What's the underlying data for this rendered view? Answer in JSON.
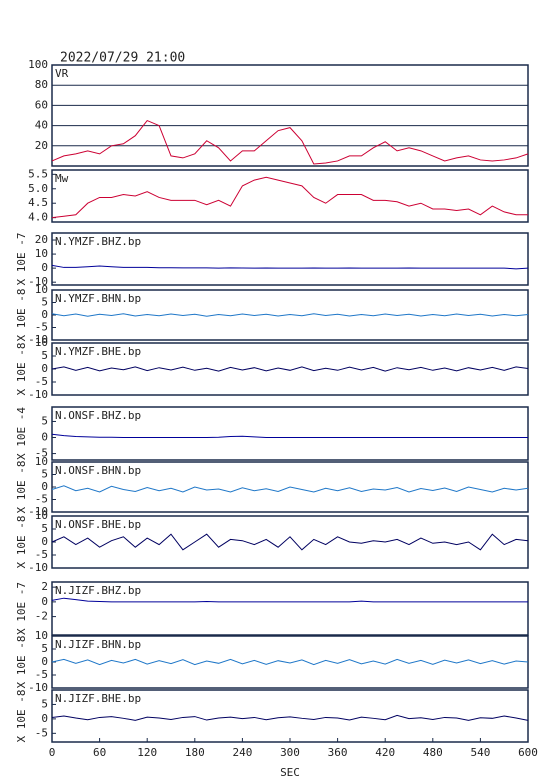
{
  "chart_data": [
    {
      "type": "line",
      "title": "2022/07/29 21:00",
      "label": "VR",
      "color": "#cc0033",
      "grid": true,
      "xlim": [
        0,
        600
      ],
      "ylim": [
        0,
        100
      ],
      "yticks": [
        20,
        40,
        60,
        80,
        100
      ],
      "x": [
        0,
        15,
        30,
        45,
        60,
        75,
        90,
        105,
        120,
        135,
        150,
        165,
        180,
        195,
        210,
        225,
        240,
        255,
        270,
        285,
        300,
        315,
        330,
        345,
        360,
        375,
        390,
        405,
        420,
        435,
        450,
        465,
        480,
        495,
        510,
        525,
        540,
        555,
        570,
        585,
        600
      ],
      "values": [
        5,
        10,
        12,
        15,
        12,
        20,
        22,
        30,
        45,
        40,
        10,
        8,
        12,
        25,
        18,
        5,
        15,
        15,
        25,
        35,
        38,
        25,
        2,
        3,
        5,
        10,
        10,
        18,
        24,
        15,
        18,
        15,
        10,
        5,
        8,
        10,
        6,
        5,
        6,
        8,
        12
      ]
    },
    {
      "type": "line",
      "label": "Mw",
      "color": "#cc0033",
      "xlim": [
        0,
        600
      ],
      "ylim": [
        3.85,
        5.65
      ],
      "yticks": [
        {
          "value": 4,
          "label": "4.0"
        },
        {
          "value": 4.5,
          "label": "4.5"
        },
        {
          "value": 5,
          "label": "5.0"
        },
        {
          "value": 5.5,
          "label": "5.5"
        }
      ],
      "x": [
        0,
        15,
        30,
        45,
        60,
        75,
        90,
        105,
        120,
        135,
        150,
        165,
        180,
        195,
        210,
        225,
        240,
        255,
        270,
        285,
        300,
        315,
        330,
        345,
        360,
        375,
        390,
        405,
        420,
        435,
        450,
        465,
        480,
        495,
        510,
        525,
        540,
        555,
        570,
        585,
        600
      ],
      "values": [
        4.0,
        4.05,
        4.1,
        4.5,
        4.7,
        4.7,
        4.8,
        4.75,
        4.9,
        4.7,
        4.6,
        4.6,
        4.6,
        4.45,
        4.6,
        4.4,
        5.1,
        5.3,
        5.4,
        5.3,
        5.2,
        5.1,
        4.7,
        4.5,
        4.8,
        4.8,
        4.8,
        4.6,
        4.6,
        4.55,
        4.4,
        4.5,
        4.3,
        4.3,
        4.25,
        4.3,
        4.1,
        4.4,
        4.2,
        4.1,
        4.1
      ]
    },
    {
      "type": "line",
      "label": "N.YMZF.BHZ.bp",
      "ylabel": "X 10E -7",
      "color": "#000099",
      "xlim": [
        0,
        600
      ],
      "ylim": [
        -12,
        25
      ],
      "yticks": [
        -10,
        0,
        10,
        20
      ],
      "x": [
        0,
        15,
        30,
        45,
        60,
        75,
        90,
        105,
        120,
        135,
        150,
        165,
        180,
        195,
        210,
        225,
        240,
        255,
        270,
        285,
        300,
        315,
        330,
        345,
        360,
        375,
        390,
        405,
        420,
        435,
        450,
        465,
        480,
        495,
        510,
        525,
        540,
        555,
        570,
        585,
        600
      ],
      "values": [
        2,
        0.5,
        0.5,
        1,
        1.5,
        1,
        0.5,
        0.5,
        0.5,
        0.3,
        0.3,
        0.2,
        0.2,
        0.2,
        0,
        0.2,
        0.1,
        0,
        0.1,
        0,
        0,
        0,
        0.1,
        0,
        0,
        0.1,
        0,
        0,
        0,
        0,
        0.1,
        0,
        0,
        0,
        0,
        0,
        0,
        0,
        0,
        -0.5,
        0
      ]
    },
    {
      "type": "line",
      "label": "N.YMZF.BHN.bp",
      "ylabel": "X 10E -8",
      "color": "#1f77c8",
      "xlim": [
        0,
        600
      ],
      "ylim": [
        -10,
        10
      ],
      "yticks": [
        -10,
        -5,
        0,
        5,
        10
      ],
      "x": [
        0,
        15,
        30,
        45,
        60,
        75,
        90,
        105,
        120,
        135,
        150,
        165,
        180,
        195,
        210,
        225,
        240,
        255,
        270,
        285,
        300,
        315,
        330,
        345,
        360,
        375,
        390,
        405,
        420,
        435,
        450,
        465,
        480,
        495,
        510,
        525,
        540,
        555,
        570,
        585,
        600
      ],
      "values": [
        0.5,
        -0.3,
        0.4,
        -0.5,
        0.3,
        -0.2,
        0.5,
        -0.4,
        0.2,
        -0.3,
        0.4,
        -0.2,
        0.3,
        -0.5,
        0.2,
        -0.3,
        0.4,
        -0.2,
        0.3,
        -0.4,
        0.2,
        -0.3,
        0.5,
        -0.2,
        0.3,
        -0.4,
        0.2,
        -0.3,
        0.4,
        -0.2,
        0.3,
        -0.4,
        0.2,
        -0.3,
        0.4,
        -0.2,
        0.3,
        -0.4,
        0.2,
        -0.3,
        0.2
      ]
    },
    {
      "type": "line",
      "label": "N.YMZF.BHE.bp",
      "ylabel": "X 10E -8",
      "color": "#000060",
      "xlim": [
        0,
        600
      ],
      "ylim": [
        -10,
        10
      ],
      "yticks": [
        -10,
        -5,
        0,
        5,
        10
      ],
      "x": [
        0,
        15,
        30,
        45,
        60,
        75,
        90,
        105,
        120,
        135,
        150,
        165,
        180,
        195,
        210,
        225,
        240,
        255,
        270,
        285,
        300,
        315,
        330,
        345,
        360,
        375,
        390,
        405,
        420,
        435,
        450,
        465,
        480,
        495,
        510,
        525,
        540,
        555,
        570,
        585,
        600
      ],
      "values": [
        0,
        0.8,
        -0.5,
        0.6,
        -0.7,
        0.4,
        -0.3,
        0.8,
        -0.6,
        0.5,
        -0.4,
        0.7,
        -0.5,
        0.3,
        -0.8,
        0.6,
        -0.4,
        0.5,
        -0.7,
        0.4,
        -0.5,
        0.8,
        -0.6,
        0.3,
        -0.5,
        0.7,
        -0.4,
        0.6,
        -0.8,
        0.5,
        -0.3,
        0.6,
        -0.5,
        0.4,
        -0.7,
        0.5,
        -0.4,
        0.6,
        -0.5,
        0.8,
        0.2
      ]
    },
    {
      "type": "line",
      "label": "N.ONSF.BHZ.bp",
      "ylabel": "X 10E -4",
      "color": "#000099",
      "xlim": [
        0,
        600
      ],
      "ylim": [
        -7,
        9.5
      ],
      "yticks": [
        -5,
        0,
        5
      ],
      "x": [
        0,
        15,
        30,
        45,
        60,
        75,
        90,
        105,
        120,
        135,
        150,
        165,
        180,
        195,
        210,
        225,
        240,
        255,
        270,
        285,
        300,
        315,
        330,
        345,
        360,
        375,
        390,
        405,
        420,
        435,
        450,
        465,
        480,
        495,
        510,
        525,
        540,
        555,
        570,
        585,
        600
      ],
      "values": [
        1,
        0.6,
        0.3,
        0.2,
        0.1,
        0.1,
        0,
        0,
        0,
        0,
        0,
        0,
        0,
        0,
        0.1,
        0.3,
        0.4,
        0.2,
        0,
        0,
        0,
        0,
        0,
        0,
        0,
        0,
        0,
        0,
        0,
        0,
        0,
        0,
        0,
        0,
        0,
        0,
        0,
        0,
        0,
        0,
        0
      ]
    },
    {
      "type": "line",
      "label": "N.ONSF.BHN.bp",
      "ylabel": "X 10E -8",
      "color": "#1f77c8",
      "xlim": [
        0,
        600
      ],
      "ylim": [
        -10,
        10
      ],
      "yticks": [
        -10,
        -5,
        0,
        5,
        10
      ],
      "x": [
        0,
        15,
        30,
        45,
        60,
        75,
        90,
        105,
        120,
        135,
        150,
        165,
        180,
        195,
        210,
        225,
        240,
        255,
        270,
        285,
        300,
        315,
        330,
        345,
        360,
        375,
        390,
        405,
        420,
        435,
        450,
        465,
        480,
        495,
        510,
        525,
        540,
        555,
        570,
        585,
        600
      ],
      "values": [
        -1,
        0.5,
        -1.5,
        -0.5,
        -2,
        0.3,
        -1,
        -1.8,
        -0.2,
        -1.5,
        -0.5,
        -2,
        0,
        -1.2,
        -0.8,
        -2,
        -0.3,
        -1.5,
        -0.7,
        -1.8,
        0,
        -1,
        -2,
        -0.5,
        -1.5,
        -0.3,
        -1.8,
        -0.8,
        -1.2,
        -0.2,
        -2,
        -0.6,
        -1.4,
        -0.4,
        -1.8,
        0,
        -1,
        -2,
        -0.5,
        -1.2,
        -0.5
      ]
    },
    {
      "type": "line",
      "label": "N.ONSF.BHE.bp",
      "ylabel": "X 10E -8",
      "color": "#000060",
      "xlim": [
        0,
        600
      ],
      "ylim": [
        -10,
        10
      ],
      "yticks": [
        -10,
        -5,
        0,
        5,
        10
      ],
      "x": [
        0,
        15,
        30,
        45,
        60,
        75,
        90,
        105,
        120,
        135,
        150,
        165,
        180,
        195,
        210,
        225,
        240,
        255,
        270,
        285,
        300,
        315,
        330,
        345,
        360,
        375,
        390,
        405,
        420,
        435,
        450,
        465,
        480,
        495,
        510,
        525,
        540,
        555,
        570,
        585,
        600
      ],
      "values": [
        0,
        2,
        -1,
        1.5,
        -2,
        0.5,
        2,
        -2,
        1.5,
        -1,
        3,
        -3,
        0,
        3,
        -2,
        1,
        0.5,
        -1,
        1,
        -2,
        2,
        -3,
        1,
        -1,
        2,
        0,
        -0.5,
        0.5,
        0,
        1,
        -1,
        1.5,
        -0.5,
        0,
        -1,
        0,
        -3,
        3,
        -1,
        1,
        0.5
      ]
    },
    {
      "type": "line",
      "label": "N.JIZF.BHZ.bp",
      "ylabel": "X 10E -7",
      "color": "#000099",
      "xlim": [
        0,
        600
      ],
      "ylim": [
        -4.5,
        2.7
      ],
      "yticks": [
        -2,
        0,
        2
      ],
      "x": [
        0,
        15,
        30,
        45,
        60,
        75,
        90,
        105,
        120,
        135,
        150,
        165,
        180,
        195,
        210,
        225,
        240,
        255,
        270,
        285,
        300,
        315,
        330,
        345,
        360,
        375,
        390,
        405,
        420,
        435,
        450,
        465,
        480,
        495,
        510,
        525,
        540,
        555,
        570,
        585,
        600
      ],
      "values": [
        0.2,
        0.5,
        0.3,
        0.1,
        0.05,
        0,
        0,
        0,
        0,
        0,
        0,
        0,
        0,
        0.05,
        0,
        0,
        0,
        0,
        0,
        0,
        0,
        0,
        0,
        0,
        0,
        0,
        0.1,
        0,
        0,
        0,
        0,
        0,
        0,
        0,
        0,
        0,
        0,
        0,
        0,
        0,
        0
      ]
    },
    {
      "type": "line",
      "label": "N.JIZF.BHN.bp",
      "ylabel": "X 10E -8",
      "color": "#1f77c8",
      "xlim": [
        0,
        600
      ],
      "ylim": [
        -10,
        10
      ],
      "yticks": [
        -10,
        -5,
        0,
        5,
        10
      ],
      "x": [
        0,
        15,
        30,
        45,
        60,
        75,
        90,
        105,
        120,
        135,
        150,
        165,
        180,
        195,
        210,
        225,
        240,
        255,
        270,
        285,
        300,
        315,
        330,
        345,
        360,
        375,
        390,
        405,
        420,
        435,
        450,
        465,
        480,
        495,
        510,
        525,
        540,
        555,
        570,
        585,
        600
      ],
      "values": [
        0,
        1,
        -0.5,
        0.8,
        -1,
        0.6,
        -0.4,
        1,
        -0.8,
        0.5,
        -0.6,
        0.9,
        -1,
        0.4,
        -0.5,
        1,
        -0.7,
        0.6,
        -0.9,
        0.5,
        -0.4,
        0.8,
        -1,
        0.6,
        -0.5,
        0.9,
        -0.7,
        0.4,
        -0.8,
        1,
        -0.5,
        0.6,
        -0.9,
        0.7,
        -0.4,
        0.8,
        -0.6,
        0.5,
        -0.8,
        0.4,
        0
      ]
    },
    {
      "type": "line",
      "label": "N.JIZF.BHE.bp",
      "ylabel": "X 10E -8",
      "xlabel": "SEC",
      "color": "#000060",
      "xlim": [
        0,
        600
      ],
      "ylim": [
        -8,
        10
      ],
      "yticks": [
        -5,
        0,
        5
      ],
      "xticks": [
        0,
        60,
        120,
        180,
        240,
        300,
        360,
        420,
        480,
        540,
        600
      ],
      "x": [
        0,
        15,
        30,
        45,
        60,
        75,
        90,
        105,
        120,
        135,
        150,
        165,
        180,
        195,
        210,
        225,
        240,
        255,
        270,
        285,
        300,
        315,
        330,
        345,
        360,
        375,
        390,
        405,
        420,
        435,
        450,
        465,
        480,
        495,
        510,
        525,
        540,
        555,
        570,
        585,
        600
      ],
      "values": [
        0.5,
        1,
        0.3,
        -0.3,
        0.5,
        0.8,
        0.2,
        -0.5,
        0.6,
        0.3,
        -0.2,
        0.5,
        0.8,
        -0.4,
        0.3,
        0.6,
        0.1,
        0.5,
        -0.3,
        0.4,
        0.7,
        0.2,
        -0.2,
        0.5,
        0.3,
        -0.4,
        0.6,
        0.2,
        -0.3,
        1.2,
        0.1,
        0.4,
        -0.2,
        0.5,
        0.3,
        -0.5,
        0.4,
        0.2,
        1,
        0.3,
        -0.5
      ]
    }
  ]
}
